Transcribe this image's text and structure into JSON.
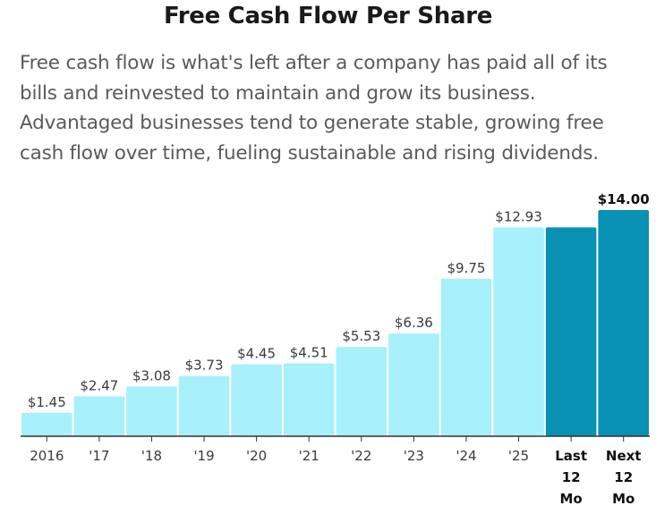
{
  "header": {
    "title": "Free Cash Flow Per Share",
    "description_lines": [
      "Free cash flow is what's left after a company has paid all of its",
      "bills and reinvested to maintain and grow its business.",
      "Advantaged businesses tend to generate stable, growing free",
      "cash flow over time, fueling sustainable and rising dividends."
    ]
  },
  "colors": {
    "bar_light": "#a8f0fb",
    "bar_dark": "#0891b2",
    "axis": "#333333"
  },
  "chart_data": {
    "type": "bar",
    "title": "Free Cash Flow Per Share",
    "xlabel": "",
    "ylabel": "",
    "ylim": [
      0,
      14.0
    ],
    "grid": false,
    "categories": [
      "2016",
      "'17",
      "'18",
      "'19",
      "'20",
      "'21",
      "'22",
      "'23",
      "'24",
      "'25",
      "Last 12 Mo",
      "Next 12 Mo"
    ],
    "category_lines": [
      [
        "2016"
      ],
      [
        "'17"
      ],
      [
        "'18"
      ],
      [
        "'19"
      ],
      [
        "'20"
      ],
      [
        "'21"
      ],
      [
        "'22"
      ],
      [
        "'23"
      ],
      [
        "'24"
      ],
      [
        "'25"
      ],
      [
        "Last",
        "12",
        "Mo"
      ],
      [
        "Next",
        "12",
        "Mo"
      ]
    ],
    "values": [
      1.45,
      2.47,
      3.08,
      3.73,
      4.45,
      4.51,
      5.53,
      6.36,
      9.75,
      12.93,
      12.93,
      14.0
    ],
    "value_labels": [
      "$1.45",
      "$2.47",
      "$3.08",
      "$3.73",
      "$4.45",
      "$4.51",
      "$5.53",
      "$6.36",
      "$9.75",
      "$12.93",
      "",
      "$14.00"
    ],
    "highlighted": [
      false,
      false,
      false,
      false,
      false,
      false,
      false,
      false,
      false,
      false,
      true,
      true
    ]
  }
}
